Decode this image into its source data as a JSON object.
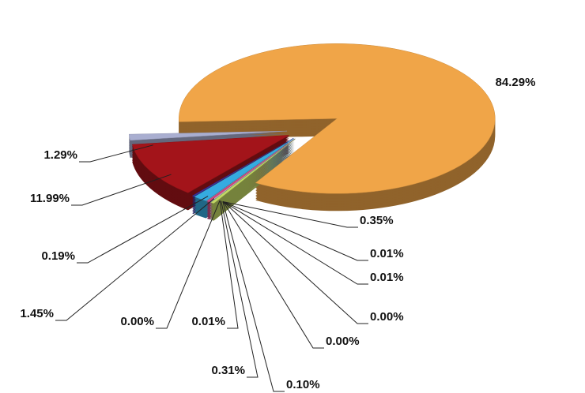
{
  "chart_data": {
    "type": "pie",
    "values": [
      84.29,
      1.29,
      11.99,
      0.19,
      1.45,
      0.0,
      0.01,
      0.31,
      0.1,
      0.0,
      0.0,
      0.01,
      0.01,
      0.35
    ],
    "value_labels": [
      "84.29%",
      "1.29%",
      "11.99%",
      "0.19%",
      "1.45%",
      "0.00%",
      "0.01%",
      "0.31%",
      "0.10%",
      "0.00%",
      "0.00%",
      "0.01%",
      "0.01%",
      "0.35%"
    ],
    "colors": [
      "#f0a548",
      "#a9aed0",
      "#a3141a",
      "#3a35a0",
      "#35abe0",
      "#82c046",
      "#d6d6f2",
      "#d0457f",
      "#e6e6e6",
      "#9fa3f5",
      "#64155f",
      "#f5a6a6",
      "#4383c2",
      "#c3d964"
    ]
  }
}
